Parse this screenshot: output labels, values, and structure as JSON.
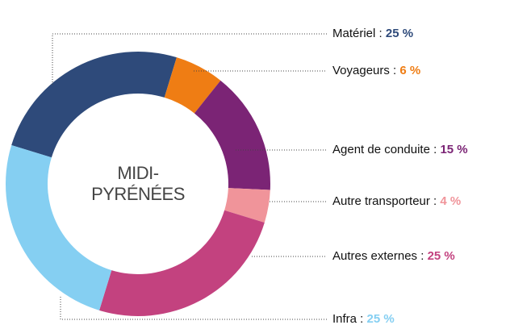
{
  "chart_data": {
    "type": "donut",
    "center_label": [
      "MIDI-",
      "PYRÉNÉES"
    ],
    "categories": [
      "Matériel :",
      "Voyageurs :",
      "Agent de conduite :",
      "Autre transporteur :",
      "Autres externes :",
      "Infra :"
    ],
    "values": [
      25,
      6,
      15,
      4,
      25,
      25
    ],
    "value_labels": [
      "25 %",
      "6 %",
      "15 %",
      "4 %",
      "25 %",
      "25 %"
    ],
    "colors": [
      "#2e4a7a",
      "#ef7d14",
      "#7b2475",
      "#f0949a",
      "#c3427f",
      "#85cff2"
    ]
  }
}
